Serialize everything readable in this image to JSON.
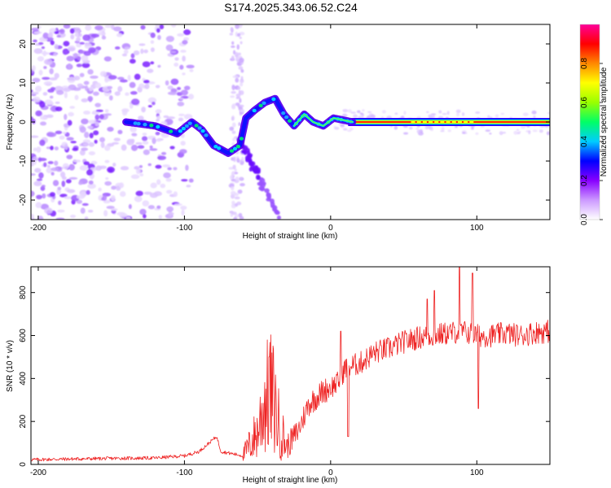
{
  "title": "S174.2025.343.06.52.C24",
  "chart_data": [
    {
      "type": "heatmap",
      "xlabel": "Height of straight line (km)",
      "ylabel": "Frequency (Hz)",
      "xlim": [
        -205,
        150
      ],
      "ylim": [
        -25,
        25
      ],
      "xticks": [
        -200,
        -100,
        0,
        100
      ],
      "yticks": [
        -20,
        -10,
        0,
        10,
        20
      ],
      "colorbar": {
        "label": "Normalized spectral amplitude",
        "range": [
          0,
          1
        ],
        "ticks": [
          "0.0",
          "0.2",
          "0.4",
          "0.6",
          "0.8"
        ],
        "tick_values": [
          0,
          0.2,
          0.4,
          0.6,
          0.8
        ],
        "colors": [
          "#ffffff",
          "#cc99ff",
          "#8800ff",
          "#0000ff",
          "#00ccff",
          "#00ff66",
          "#99ff00",
          "#ffff00",
          "#ff8800",
          "#ff0000",
          "#ff0099"
        ]
      },
      "ridge": [
        {
          "x": -140,
          "y": 0
        },
        {
          "x": -120,
          "y": -1
        },
        {
          "x": -105,
          "y": -3
        },
        {
          "x": -95,
          "y": 0
        },
        {
          "x": -88,
          "y": -2
        },
        {
          "x": -80,
          "y": -6
        },
        {
          "x": -70,
          "y": -8
        },
        {
          "x": -62,
          "y": -6
        },
        {
          "x": -58,
          "y": 1
        },
        {
          "x": -52,
          "y": 3
        },
        {
          "x": -45,
          "y": 5
        },
        {
          "x": -38,
          "y": 6
        },
        {
          "x": -32,
          "y": 2
        },
        {
          "x": -25,
          "y": -1
        },
        {
          "x": -18,
          "y": 2
        },
        {
          "x": -12,
          "y": 0
        },
        {
          "x": -5,
          "y": -1
        },
        {
          "x": 2,
          "y": 1
        },
        {
          "x": 15,
          "y": 0
        },
        {
          "x": 150,
          "y": 0
        }
      ],
      "steady_band": {
        "x_start": 12,
        "x_end": 150,
        "frequency": 0
      },
      "secondary_branch": [
        {
          "x": -62,
          "y": -5
        },
        {
          "x": -35,
          "y": -24
        }
      ]
    },
    {
      "type": "line",
      "xlabel": "Height of straight line (km)",
      "ylabel": "SNR (10 * v/v)",
      "xlim": [
        -205,
        150
      ],
      "ylim": [
        0,
        920
      ],
      "xticks": [
        -200,
        -100,
        0,
        100
      ],
      "yticks": [
        0,
        200,
        400,
        600,
        800
      ],
      "series": [
        {
          "name": "SNR",
          "color": "#ee2222",
          "points": [
            {
              "x": -205,
              "y": 22
            },
            {
              "x": -180,
              "y": 25
            },
            {
              "x": -150,
              "y": 28
            },
            {
              "x": -120,
              "y": 30
            },
            {
              "x": -100,
              "y": 40
            },
            {
              "x": -90,
              "y": 60
            },
            {
              "x": -78,
              "y": 130
            },
            {
              "x": -75,
              "y": 60
            },
            {
              "x": -60,
              "y": 40
            },
            {
              "x": -50,
              "y": 150
            },
            {
              "x": -45,
              "y": 300
            },
            {
              "x": -40,
              "y": 330
            },
            {
              "x": -36,
              "y": 200
            },
            {
              "x": -30,
              "y": 80
            },
            {
              "x": -22,
              "y": 160
            },
            {
              "x": -15,
              "y": 280
            },
            {
              "x": -5,
              "y": 340
            },
            {
              "x": 5,
              "y": 380
            },
            {
              "x": 10,
              "y": 450
            },
            {
              "x": 20,
              "y": 470
            },
            {
              "x": 30,
              "y": 520
            },
            {
              "x": 40,
              "y": 540
            },
            {
              "x": 50,
              "y": 570
            },
            {
              "x": 60,
              "y": 590
            },
            {
              "x": 70,
              "y": 600
            },
            {
              "x": 80,
              "y": 610
            },
            {
              "x": 90,
              "y": 620
            },
            {
              "x": 100,
              "y": 600
            },
            {
              "x": 110,
              "y": 600
            },
            {
              "x": 120,
              "y": 610
            },
            {
              "x": 130,
              "y": 600
            },
            {
              "x": 140,
              "y": 615
            },
            {
              "x": 150,
              "y": 620
            }
          ],
          "spikes": [
            {
              "x": -42,
              "y": 500
            },
            {
              "x": 7,
              "y": 620
            },
            {
              "x": 12,
              "y": 130
            },
            {
              "x": 66,
              "y": 770
            },
            {
              "x": 71,
              "y": 810
            },
            {
              "x": 88,
              "y": 920
            },
            {
              "x": 97,
              "y": 890
            },
            {
              "x": 101,
              "y": 260
            }
          ]
        }
      ]
    }
  ]
}
